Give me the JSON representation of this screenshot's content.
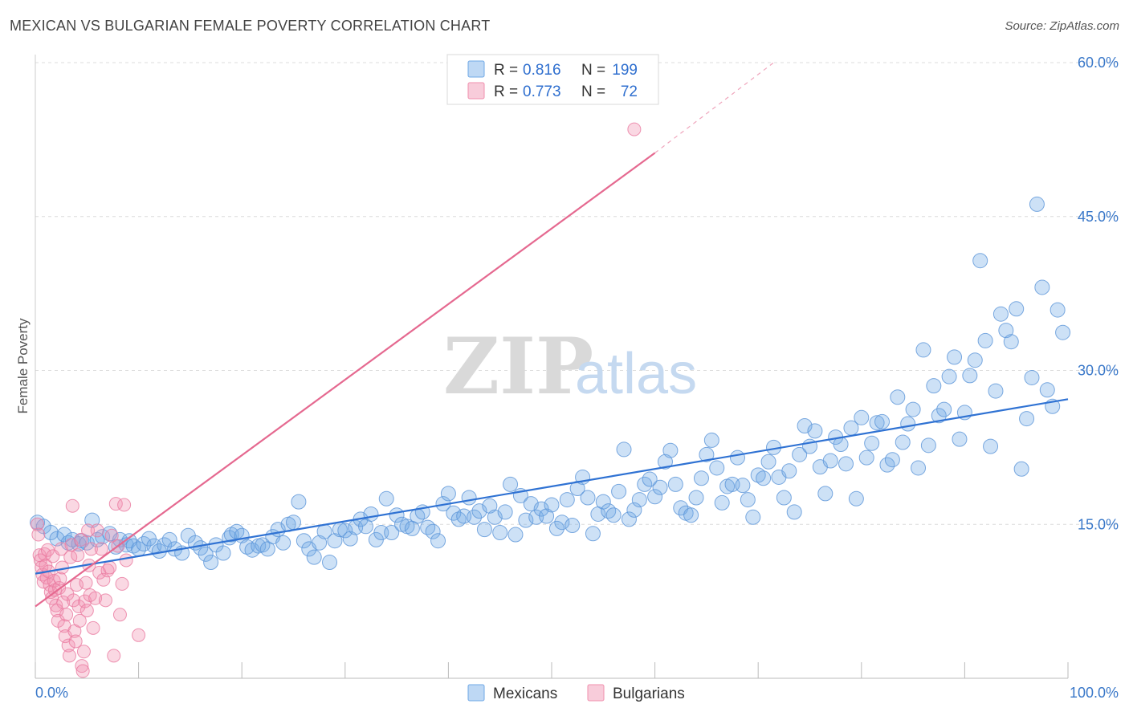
{
  "title": "MEXICAN VS BULGARIAN FEMALE POVERTY CORRELATION CHART",
  "source": "Source: ZipAtlas.com",
  "watermark": {
    "zip": "ZIP",
    "atlas": "atlas"
  },
  "chart_data": {
    "type": "scatter",
    "ylabel": "Female Poverty",
    "xlim": [
      0,
      100
    ],
    "ylim": [
      0,
      60
    ],
    "x_tick_labels": {
      "left": "0.0%",
      "right": "100.0%"
    },
    "y_ticks": [
      {
        "value": 15,
        "label": "15.0%"
      },
      {
        "value": 30,
        "label": "30.0%"
      },
      {
        "value": 45,
        "label": "45.0%"
      },
      {
        "value": 60,
        "label": "60.0%"
      }
    ],
    "grid": true,
    "legend_top": [
      {
        "r_label": "R =",
        "r_value": "0.816",
        "n_label": "N =",
        "n_value": "199",
        "color": "#6fa8e6"
      },
      {
        "r_label": "R =",
        "r_value": "0.773",
        "n_label": "N =",
        "n_value": "72",
        "color": "#f08fae"
      }
    ],
    "series": [
      {
        "name": "Mexicans",
        "color": "#6fa8e6",
        "stroke": "#5b95d8",
        "trend": {
          "x0": 0,
          "y0": 10.2,
          "x1": 100,
          "y1": 27.2,
          "color": "#2f72d3"
        },
        "points": [
          [
            0.2,
            15.2
          ],
          [
            0.8,
            14.8
          ],
          [
            1.5,
            14.2
          ],
          [
            2.1,
            13.6
          ],
          [
            2.8,
            14.0
          ],
          [
            3.2,
            13.2
          ],
          [
            3.6,
            13.5
          ],
          [
            4.2,
            13.1
          ],
          [
            4.5,
            13.4
          ],
          [
            5.0,
            13.2
          ],
          [
            5.5,
            15.4
          ],
          [
            6.0,
            13.5
          ],
          [
            6.5,
            13.8
          ],
          [
            7.2,
            14.1
          ],
          [
            7.8,
            12.8
          ],
          [
            8.2,
            13.5
          ],
          [
            8.8,
            13.0
          ],
          [
            9.1,
            13.4
          ],
          [
            9.5,
            12.9
          ],
          [
            10.0,
            12.6
          ],
          [
            10.5,
            13.1
          ],
          [
            11.0,
            13.6
          ],
          [
            11.5,
            12.9
          ],
          [
            12.0,
            12.4
          ],
          [
            12.5,
            13.0
          ],
          [
            13.0,
            13.5
          ],
          [
            13.5,
            12.6
          ],
          [
            14.2,
            12.2
          ],
          [
            14.8,
            13.9
          ],
          [
            15.5,
            13.2
          ],
          [
            16.0,
            12.7
          ],
          [
            16.5,
            12.1
          ],
          [
            17.0,
            11.3
          ],
          [
            17.5,
            13.0
          ],
          [
            18.2,
            12.2
          ],
          [
            18.8,
            13.7
          ],
          [
            19.0,
            14.0
          ],
          [
            19.5,
            14.3
          ],
          [
            20.0,
            13.9
          ],
          [
            20.5,
            12.8
          ],
          [
            21.0,
            12.5
          ],
          [
            21.6,
            12.9
          ],
          [
            22.0,
            13.0
          ],
          [
            22.5,
            12.6
          ],
          [
            23.0,
            13.8
          ],
          [
            23.5,
            14.5
          ],
          [
            24.0,
            13.2
          ],
          [
            24.5,
            15.0
          ],
          [
            25.0,
            15.2
          ],
          [
            25.5,
            17.2
          ],
          [
            26.0,
            13.4
          ],
          [
            26.5,
            12.6
          ],
          [
            27.0,
            11.8
          ],
          [
            27.5,
            13.2
          ],
          [
            28.0,
            14.3
          ],
          [
            28.5,
            11.3
          ],
          [
            29.0,
            13.4
          ],
          [
            29.5,
            14.5
          ],
          [
            30.0,
            14.4
          ],
          [
            30.5,
            13.6
          ],
          [
            31.0,
            14.7
          ],
          [
            31.5,
            15.5
          ],
          [
            32.0,
            14.8
          ],
          [
            32.5,
            16.0
          ],
          [
            33.0,
            13.5
          ],
          [
            33.5,
            14.2
          ],
          [
            34.0,
            17.5
          ],
          [
            34.5,
            14.2
          ],
          [
            35.0,
            15.9
          ],
          [
            35.5,
            15.0
          ],
          [
            36.0,
            14.8
          ],
          [
            36.5,
            14.6
          ],
          [
            37.0,
            15.8
          ],
          [
            37.5,
            16.2
          ],
          [
            38.0,
            14.7
          ],
          [
            38.5,
            14.3
          ],
          [
            39.0,
            13.4
          ],
          [
            39.5,
            17.0
          ],
          [
            40.0,
            18.0
          ],
          [
            40.5,
            16.1
          ],
          [
            41.0,
            15.5
          ],
          [
            41.5,
            15.8
          ],
          [
            42.0,
            17.6
          ],
          [
            42.5,
            15.7
          ],
          [
            43.0,
            16.3
          ],
          [
            43.5,
            14.5
          ],
          [
            44.0,
            16.8
          ],
          [
            44.5,
            15.7
          ],
          [
            45.0,
            14.2
          ],
          [
            45.5,
            16.2
          ],
          [
            46.0,
            18.9
          ],
          [
            46.5,
            14.0
          ],
          [
            47.0,
            17.8
          ],
          [
            47.5,
            15.4
          ],
          [
            48.0,
            17.0
          ],
          [
            48.5,
            15.7
          ],
          [
            49.0,
            16.5
          ],
          [
            49.5,
            15.8
          ],
          [
            50.0,
            16.9
          ],
          [
            50.5,
            14.6
          ],
          [
            51.0,
            15.2
          ],
          [
            51.5,
            17.4
          ],
          [
            52.0,
            14.9
          ],
          [
            52.5,
            18.5
          ],
          [
            53.0,
            19.6
          ],
          [
            53.5,
            17.6
          ],
          [
            54.0,
            14.1
          ],
          [
            54.5,
            16.0
          ],
          [
            55.0,
            17.2
          ],
          [
            55.5,
            16.3
          ],
          [
            56.0,
            15.9
          ],
          [
            56.5,
            18.2
          ],
          [
            57.0,
            22.3
          ],
          [
            57.5,
            15.5
          ],
          [
            58.0,
            16.4
          ],
          [
            58.5,
            17.4
          ],
          [
            59.0,
            18.9
          ],
          [
            59.5,
            19.4
          ],
          [
            60.0,
            17.7
          ],
          [
            60.5,
            18.6
          ],
          [
            61.0,
            21.1
          ],
          [
            61.5,
            22.2
          ],
          [
            62.0,
            18.9
          ],
          [
            62.5,
            16.6
          ],
          [
            63.0,
            16.1
          ],
          [
            63.5,
            15.9
          ],
          [
            64.0,
            17.6
          ],
          [
            64.5,
            19.5
          ],
          [
            65.0,
            21.8
          ],
          [
            65.5,
            23.2
          ],
          [
            66.0,
            20.5
          ],
          [
            66.5,
            17.1
          ],
          [
            67.0,
            18.7
          ],
          [
            67.5,
            18.9
          ],
          [
            68.0,
            21.5
          ],
          [
            68.5,
            18.8
          ],
          [
            69.0,
            17.4
          ],
          [
            69.5,
            15.7
          ],
          [
            70.0,
            19.8
          ],
          [
            70.5,
            19.5
          ],
          [
            71.0,
            21.1
          ],
          [
            71.5,
            22.5
          ],
          [
            72.0,
            19.6
          ],
          [
            72.5,
            17.6
          ],
          [
            73.0,
            20.2
          ],
          [
            73.5,
            16.2
          ],
          [
            74.0,
            21.8
          ],
          [
            74.5,
            24.6
          ],
          [
            75.0,
            22.6
          ],
          [
            75.5,
            24.1
          ],
          [
            76.0,
            20.6
          ],
          [
            76.5,
            18.0
          ],
          [
            77.0,
            21.2
          ],
          [
            77.5,
            23.5
          ],
          [
            78.0,
            22.8
          ],
          [
            78.5,
            20.9
          ],
          [
            79.0,
            24.4
          ],
          [
            79.5,
            17.5
          ],
          [
            80.0,
            25.4
          ],
          [
            80.5,
            21.5
          ],
          [
            81.0,
            22.9
          ],
          [
            81.5,
            24.9
          ],
          [
            82.0,
            25.0
          ],
          [
            82.5,
            20.8
          ],
          [
            83.0,
            21.3
          ],
          [
            83.5,
            27.4
          ],
          [
            84.0,
            23.0
          ],
          [
            84.5,
            24.8
          ],
          [
            85.0,
            26.2
          ],
          [
            85.5,
            20.5
          ],
          [
            86.0,
            32.0
          ],
          [
            86.5,
            22.7
          ],
          [
            87.0,
            28.5
          ],
          [
            87.5,
            25.6
          ],
          [
            88.0,
            26.2
          ],
          [
            88.5,
            29.4
          ],
          [
            89.0,
            31.3
          ],
          [
            89.5,
            23.3
          ],
          [
            90.0,
            25.9
          ],
          [
            90.5,
            29.5
          ],
          [
            91.0,
            31.0
          ],
          [
            91.5,
            40.7
          ],
          [
            92.0,
            32.9
          ],
          [
            92.5,
            22.6
          ],
          [
            93.0,
            28.0
          ],
          [
            93.5,
            35.5
          ],
          [
            94.0,
            33.9
          ],
          [
            94.5,
            32.8
          ],
          [
            95.0,
            36.0
          ],
          [
            95.5,
            20.4
          ],
          [
            96.0,
            25.3
          ],
          [
            96.5,
            29.3
          ],
          [
            97.0,
            46.2
          ],
          [
            97.5,
            38.1
          ],
          [
            98.0,
            28.1
          ],
          [
            98.5,
            26.5
          ],
          [
            99.0,
            35.9
          ],
          [
            99.5,
            33.7
          ]
        ]
      },
      {
        "name": "Bulgarians",
        "color": "#f08fae",
        "stroke": "#ea7ba0",
        "trend": {
          "x0": 0,
          "y0": 7.0,
          "x1": 60,
          "y1": 51.2,
          "color": "#e56990"
        },
        "trend_dashed": {
          "x0": 60,
          "y0": 51.2,
          "x1": 71.5,
          "y1": 60.0
        },
        "points": [
          [
            0.2,
            15.0
          ],
          [
            0.3,
            14.0
          ],
          [
            0.4,
            12.0
          ],
          [
            0.5,
            11.5
          ],
          [
            0.6,
            10.8
          ],
          [
            0.7,
            10.1
          ],
          [
            0.8,
            9.4
          ],
          [
            0.9,
            12.1
          ],
          [
            1.0,
            11.0
          ],
          [
            1.1,
            9.8
          ],
          [
            1.2,
            12.5
          ],
          [
            1.3,
            10.4
          ],
          [
            1.4,
            9.1
          ],
          [
            1.5,
            8.4
          ],
          [
            1.6,
            7.8
          ],
          [
            1.7,
            11.9
          ],
          [
            1.8,
            9.5
          ],
          [
            1.9,
            8.6
          ],
          [
            2.0,
            7.1
          ],
          [
            2.1,
            6.6
          ],
          [
            2.2,
            5.6
          ],
          [
            2.3,
            8.8
          ],
          [
            2.4,
            9.7
          ],
          [
            2.5,
            12.6
          ],
          [
            2.6,
            10.8
          ],
          [
            2.7,
            7.4
          ],
          [
            2.8,
            5.1
          ],
          [
            2.9,
            4.1
          ],
          [
            3.0,
            6.2
          ],
          [
            3.1,
            8.2
          ],
          [
            3.2,
            3.2
          ],
          [
            3.3,
            2.2
          ],
          [
            3.4,
            11.8
          ],
          [
            3.5,
            13.0
          ],
          [
            3.6,
            16.8
          ],
          [
            3.7,
            7.6
          ],
          [
            3.8,
            4.6
          ],
          [
            3.9,
            3.6
          ],
          [
            4.0,
            9.1
          ],
          [
            4.1,
            12.0
          ],
          [
            4.2,
            7.0
          ],
          [
            4.3,
            5.6
          ],
          [
            4.4,
            13.5
          ],
          [
            4.5,
            1.2
          ],
          [
            4.6,
            0.7
          ],
          [
            4.7,
            2.6
          ],
          [
            4.8,
            7.5
          ],
          [
            4.9,
            9.3
          ],
          [
            5.0,
            6.6
          ],
          [
            5.1,
            14.4
          ],
          [
            5.2,
            11.0
          ],
          [
            5.3,
            8.1
          ],
          [
            5.4,
            12.6
          ],
          [
            5.6,
            4.9
          ],
          [
            5.8,
            7.8
          ],
          [
            6.0,
            14.4
          ],
          [
            6.2,
            10.3
          ],
          [
            6.4,
            12.6
          ],
          [
            6.6,
            9.6
          ],
          [
            6.8,
            7.6
          ],
          [
            7.0,
            10.5
          ],
          [
            7.2,
            10.8
          ],
          [
            7.4,
            13.9
          ],
          [
            7.6,
            2.2
          ],
          [
            7.8,
            17.0
          ],
          [
            8.0,
            12.9
          ],
          [
            8.2,
            6.2
          ],
          [
            8.4,
            9.2
          ],
          [
            8.6,
            16.9
          ],
          [
            8.8,
            11.5
          ],
          [
            10.0,
            4.2
          ],
          [
            58.0,
            53.5
          ]
        ]
      }
    ]
  },
  "legend_bottom": [
    {
      "label": "Mexicans",
      "color": "#6fa8e6"
    },
    {
      "label": "Bulgarians",
      "color": "#f08fae"
    }
  ]
}
